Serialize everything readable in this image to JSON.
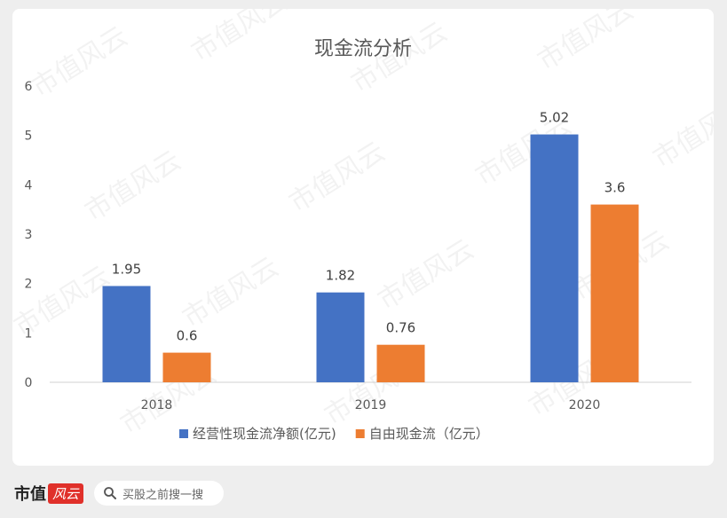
{
  "watermark_text": "市值风云",
  "chart_data": {
    "type": "bar",
    "title": "现金流分析",
    "categories": [
      "2018",
      "2019",
      "2020"
    ],
    "series": [
      {
        "name": "经营性现金流净额(亿元)",
        "values": [
          1.95,
          1.82,
          5.02
        ],
        "labels": [
          "1.95",
          "1.82",
          "5.02"
        ],
        "color": "#4472C4"
      },
      {
        "name": "自由现金流（亿元）",
        "values": [
          0.6,
          0.76,
          3.6
        ],
        "labels": [
          "0.6",
          "0.76",
          "3.6"
        ],
        "color": "#ED7D31"
      }
    ],
    "ylim": [
      0,
      6
    ],
    "yticks": [
      "0",
      "1",
      "2",
      "3",
      "4",
      "5",
      "6"
    ],
    "grid": false,
    "legend": "bottom"
  },
  "footer": {
    "brand": "市值",
    "brand_seal": "风云",
    "search_placeholder": "买股之前搜一搜",
    "search_icon": "search-icon"
  }
}
